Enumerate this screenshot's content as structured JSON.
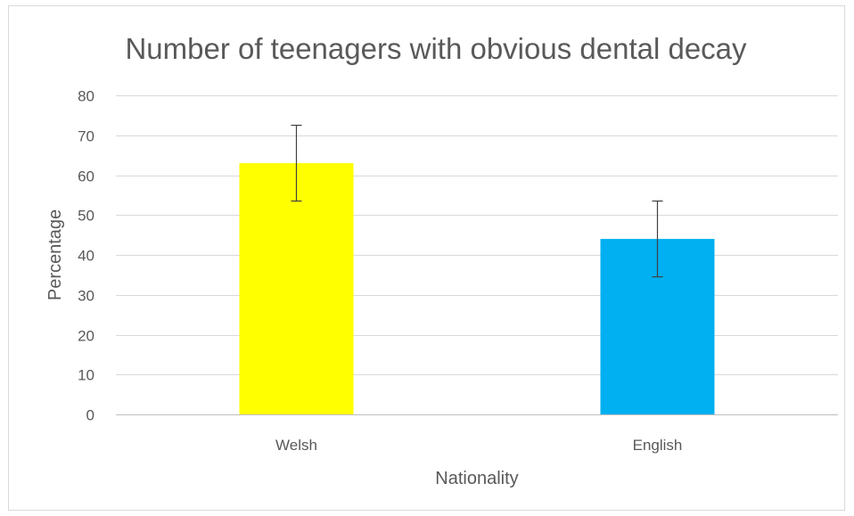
{
  "chart_data": {
    "type": "bar",
    "title": "Number of teenagers with obvious dental decay",
    "xlabel": "Nationality",
    "ylabel": "Percentage",
    "categories": [
      "Welsh",
      "English"
    ],
    "values": [
      63,
      44
    ],
    "error_bars": [
      {
        "low": 53.5,
        "high": 72.5
      },
      {
        "low": 34.5,
        "high": 53.5
      }
    ],
    "bar_colors": [
      "#ffff00",
      "#00b0f0"
    ],
    "ylim": [
      0,
      80
    ],
    "yticks": [
      0,
      10,
      20,
      30,
      40,
      50,
      60,
      70,
      80
    ],
    "grid": true,
    "legend": "none"
  }
}
